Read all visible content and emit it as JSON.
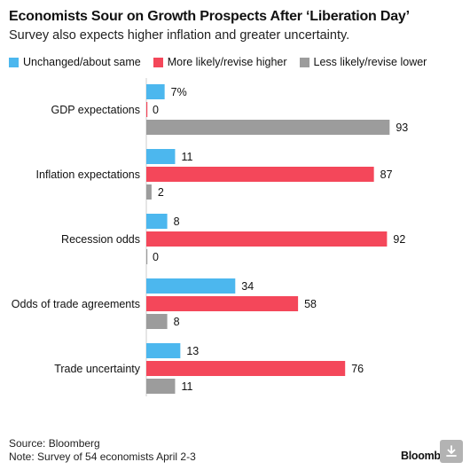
{
  "title": "Economists Sour on Growth Prospects After ‘Liberation Day’",
  "subtitle": "Survey also expects higher inflation and greater uncertainty.",
  "colors": {
    "unchanged": "#4cb7ee",
    "higher": "#f4475a",
    "lower": "#9c9c9c"
  },
  "chart_data": {
    "type": "bar",
    "orientation": "horizontal",
    "categories": [
      "GDP expectations",
      "Inflation expectations",
      "Recession odds",
      "Odds of trade agreements",
      "Trade uncertainty"
    ],
    "series": [
      {
        "name": "Unchanged/about same",
        "values": [
          7,
          11,
          8,
          34,
          13
        ]
      },
      {
        "name": "More likely/revise higher",
        "values": [
          0,
          87,
          92,
          58,
          76
        ]
      },
      {
        "name": "Less likely/revise lower",
        "values": [
          93,
          2,
          0,
          8,
          11
        ]
      }
    ],
    "xlim": [
      0,
      100
    ],
    "grid": false,
    "legend_position": "top-left"
  },
  "footer": {
    "source": "Source: Bloomberg",
    "note": "Note: Survey of 54 economists April 2-3"
  },
  "brand": "Bloomberg",
  "download_icon": "download-icon"
}
